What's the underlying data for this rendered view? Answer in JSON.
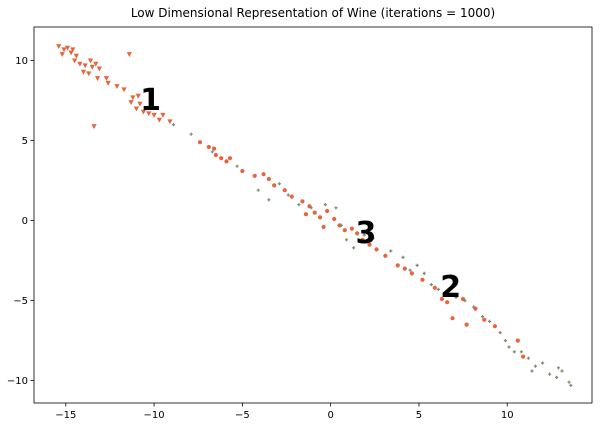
{
  "colors": {
    "class1": "#e8643c",
    "class2": "#e8643c",
    "class3": "#7d8c6a",
    "axis": "#000000",
    "background": "#ffffff"
  },
  "chart_data": {
    "type": "scatter",
    "title": "Low Dimensional Representation of Wine (iterations = 1000)",
    "xlabel": "",
    "ylabel": "",
    "xlim": [
      -16.8,
      14.8
    ],
    "ylim": [
      -11.4,
      12.1
    ],
    "xticks": [
      -15,
      -10,
      -5,
      0,
      5,
      10
    ],
    "yticks": [
      -10,
      -5,
      0,
      5,
      10
    ],
    "grid": false,
    "annotations": [
      {
        "text": "1",
        "x": -10.2,
        "y": 7.6
      },
      {
        "text": "3",
        "x": 2.0,
        "y": -0.7
      },
      {
        "text": "2",
        "x": 6.8,
        "y": -4.1
      }
    ],
    "series": [
      {
        "marker": "triangle-down",
        "color": "#e8643c",
        "points": [
          [
            -15.4,
            10.9
          ],
          [
            -15.1,
            10.7
          ],
          [
            -14.9,
            10.8
          ],
          [
            -15.2,
            10.4
          ],
          [
            -14.7,
            10.5
          ],
          [
            -14.4,
            10.3
          ],
          [
            -14.5,
            10.0
          ],
          [
            -14.2,
            9.8
          ],
          [
            -13.9,
            9.7
          ],
          [
            -14.0,
            9.3
          ],
          [
            -13.6,
            10.0
          ],
          [
            -13.3,
            9.8
          ],
          [
            -13.5,
            9.6
          ],
          [
            -13.1,
            9.5
          ],
          [
            -13.7,
            9.2
          ],
          [
            -13.2,
            8.9
          ],
          [
            -12.7,
            8.9
          ],
          [
            -12.6,
            8.6
          ],
          [
            -12.1,
            8.4
          ],
          [
            -11.4,
            10.4
          ],
          [
            -11.2,
            7.7
          ],
          [
            -10.9,
            7.8
          ],
          [
            -11.3,
            7.4
          ],
          [
            -10.8,
            7.3
          ],
          [
            -11.0,
            7.0
          ],
          [
            -10.6,
            6.8
          ],
          [
            -10.3,
            6.7
          ],
          [
            -10.0,
            6.6
          ],
          [
            -9.7,
            6.3
          ],
          [
            -9.5,
            6.6
          ],
          [
            -13.4,
            5.9
          ],
          [
            -9.1,
            6.2
          ],
          [
            -11.7,
            8.2
          ],
          [
            -14.6,
            10.7
          ]
        ]
      },
      {
        "marker": "circle",
        "color": "#e8643c",
        "points": [
          [
            -7.4,
            4.9
          ],
          [
            -6.9,
            4.6
          ],
          [
            -6.6,
            4.5
          ],
          [
            -6.5,
            4.1
          ],
          [
            -6.2,
            3.9
          ],
          [
            -5.9,
            3.7
          ],
          [
            -5.7,
            3.9
          ],
          [
            -5.0,
            3.1
          ],
          [
            -4.3,
            2.8
          ],
          [
            -3.8,
            2.9
          ],
          [
            -3.5,
            2.6
          ],
          [
            -3.2,
            2.2
          ],
          [
            -2.6,
            1.9
          ],
          [
            -2.2,
            1.5
          ],
          [
            -1.6,
            1.2
          ],
          [
            -1.2,
            0.9
          ],
          [
            -1.4,
            0.4
          ],
          [
            -0.9,
            0.5
          ],
          [
            -0.6,
            0.2
          ],
          [
            -0.2,
            0.6
          ],
          [
            0.2,
            0.1
          ],
          [
            0.5,
            -0.3
          ],
          [
            0.8,
            -0.6
          ],
          [
            1.2,
            -0.5
          ],
          [
            1.5,
            -0.8
          ],
          [
            1.8,
            -1.2
          ],
          [
            2.2,
            -1.5
          ],
          [
            2.6,
            -1.8
          ],
          [
            3.1,
            -2.2
          ],
          [
            3.8,
            -2.8
          ],
          [
            4.2,
            -3.0
          ],
          [
            4.6,
            -3.3
          ],
          [
            5.2,
            -3.7
          ],
          [
            5.9,
            -4.2
          ],
          [
            6.3,
            -4.9
          ],
          [
            6.6,
            -5.1
          ],
          [
            6.9,
            -6.1
          ],
          [
            7.5,
            -4.9
          ],
          [
            8.2,
            -5.5
          ],
          [
            8.7,
            -6.2
          ],
          [
            9.3,
            -6.6
          ],
          [
            10.6,
            -7.5
          ],
          [
            10.9,
            -8.5
          ],
          [
            7.7,
            -6.5
          ],
          [
            -0.4,
            -0.4
          ]
        ]
      },
      {
        "marker": "plus",
        "color": "#7d8c6a",
        "points": [
          [
            -8.9,
            6.0
          ],
          [
            -7.9,
            5.4
          ],
          [
            -6.7,
            4.3
          ],
          [
            -5.3,
            3.4
          ],
          [
            -4.1,
            1.9
          ],
          [
            -3.5,
            1.3
          ],
          [
            -2.9,
            2.3
          ],
          [
            -2.4,
            1.6
          ],
          [
            -1.8,
            1.0
          ],
          [
            -1.1,
            0.8
          ],
          [
            -0.3,
            1.0
          ],
          [
            0.3,
            0.8
          ],
          [
            0.6,
            -0.3
          ],
          [
            0.9,
            -1.2
          ],
          [
            1.3,
            -1.7
          ],
          [
            1.9,
            -0.9
          ],
          [
            2.4,
            -1.1
          ],
          [
            3.4,
            -1.9
          ],
          [
            4.1,
            -2.3
          ],
          [
            4.5,
            -3.1
          ],
          [
            4.9,
            -2.8
          ],
          [
            5.3,
            -3.3
          ],
          [
            5.7,
            -4.0
          ],
          [
            6.1,
            -4.3
          ],
          [
            6.5,
            -4.5
          ],
          [
            7.1,
            -4.8
          ],
          [
            7.6,
            -5.0
          ],
          [
            8.1,
            -5.4
          ],
          [
            8.6,
            -6.0
          ],
          [
            9.0,
            -6.3
          ],
          [
            9.6,
            -7.0
          ],
          [
            10.1,
            -7.9
          ],
          [
            10.4,
            -8.2
          ],
          [
            10.8,
            -8.2
          ],
          [
            11.2,
            -8.6
          ],
          [
            11.6,
            -9.1
          ],
          [
            12.0,
            -8.9
          ],
          [
            12.4,
            -9.6
          ],
          [
            12.8,
            -9.8
          ],
          [
            13.1,
            -9.4
          ],
          [
            13.5,
            -10.1
          ],
          [
            13.6,
            -10.3
          ],
          [
            9.9,
            -7.5
          ],
          [
            11.4,
            -9.4
          ],
          [
            12.9,
            -9.2
          ]
        ]
      }
    ]
  }
}
